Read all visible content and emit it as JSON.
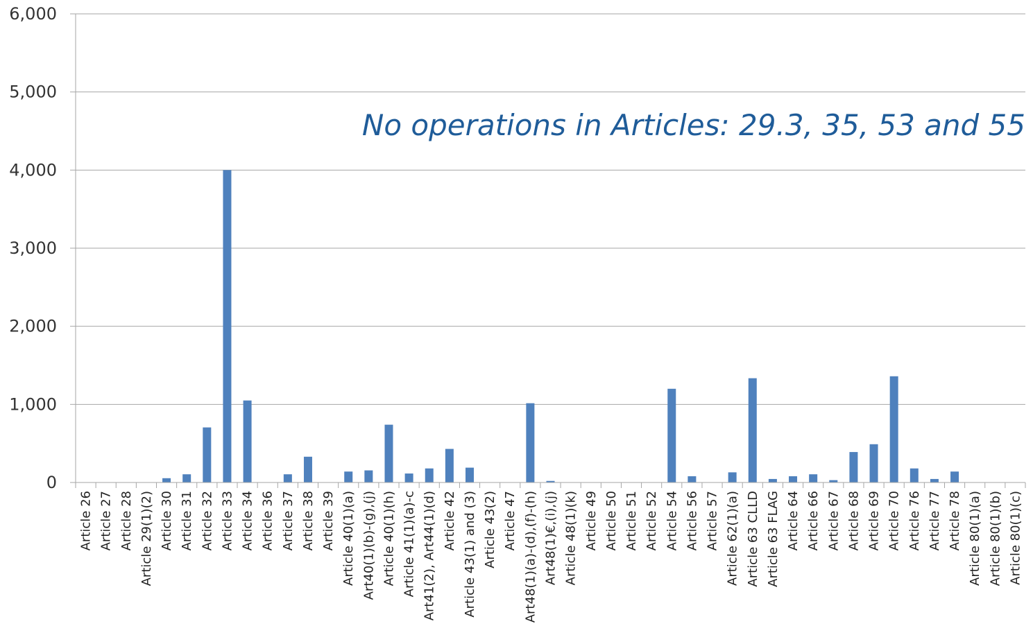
{
  "chart_data": {
    "type": "bar",
    "annotation": "No operations in Articles: 29.3, 35, 53 and 55",
    "ylim": [
      0,
      6000
    ],
    "yticks": [
      0,
      1000,
      2000,
      3000,
      4000,
      5000,
      6000
    ],
    "ytick_labels": [
      "0",
      "1,000",
      "2,000",
      "3,000",
      "4,000",
      "5,000",
      "6,000"
    ],
    "grid": true,
    "bar_color": "#4f81bd",
    "categories": [
      "Article 26",
      "Article 27",
      "Article 28",
      "Article 29(1)(2)",
      "Article 30",
      "Article 31",
      "Article 32",
      "Article 33",
      "Article 34",
      "Article 36",
      "Article 37",
      "Article 38",
      "Article 39",
      "Article 40(1)(a)",
      "Art40(1)(b)-(g),(j)",
      "Article 40(1)(h)",
      "Article 41(1)(a)-c",
      "Art41(2), Art44(1)(d)",
      "Article 42",
      "Article 43(1) and (3)",
      "Article 43(2)",
      "Article 47",
      "Art48(1)(a)-(d),(f)-(h)",
      "Art48(1)€,(i),(j)",
      "Article 48(1)(k)",
      "Article 49",
      "Article 50",
      "Article 51",
      "Article 52",
      "Article 54",
      "Article 56",
      "Article 57",
      "Article 62(1)(a)",
      "Article 63 CLLD",
      "Article 63 FLAG",
      "Article 64",
      "Article 66",
      "Article 67",
      "Article 68",
      "Article 69",
      "Article 70",
      "Article 76",
      "Article 77",
      "Article 78",
      "Article 80(1)(a)",
      "Article 80(1)(b)",
      "Article 80(1)(c)"
    ],
    "values": [
      0,
      0,
      0,
      0,
      55,
      105,
      705,
      4000,
      1050,
      0,
      105,
      330,
      0,
      140,
      155,
      740,
      115,
      180,
      430,
      190,
      0,
      0,
      1015,
      20,
      0,
      0,
      0,
      0,
      0,
      1200,
      80,
      0,
      130,
      1335,
      45,
      80,
      105,
      30,
      390,
      490,
      1360,
      180,
      45,
      140,
      0,
      0,
      0
    ]
  }
}
